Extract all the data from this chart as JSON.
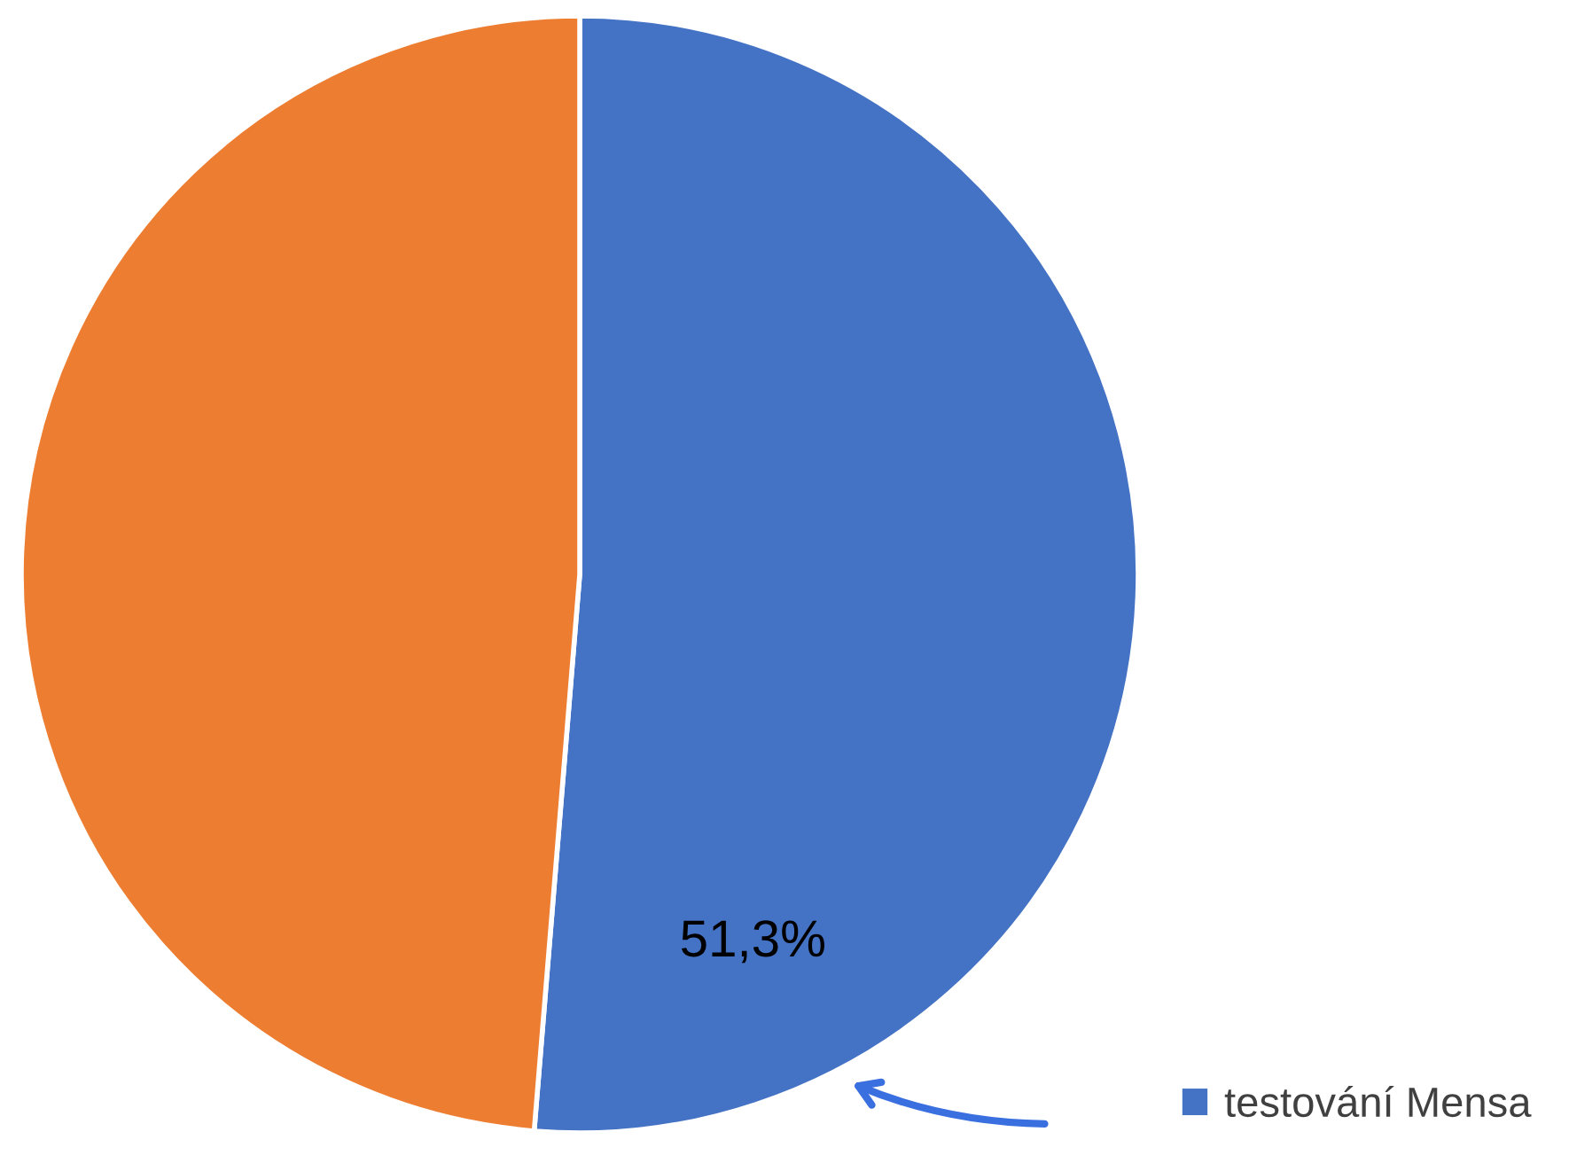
{
  "chart_data": {
    "type": "pie",
    "categories": [
      "testování Mensa",
      null
    ],
    "values": [
      51.3,
      48.7
    ],
    "colors": [
      "#4472c4",
      "#ed7d31"
    ],
    "value_labels": [
      "51,3%",
      null
    ],
    "legend": "bottom right"
  }
}
